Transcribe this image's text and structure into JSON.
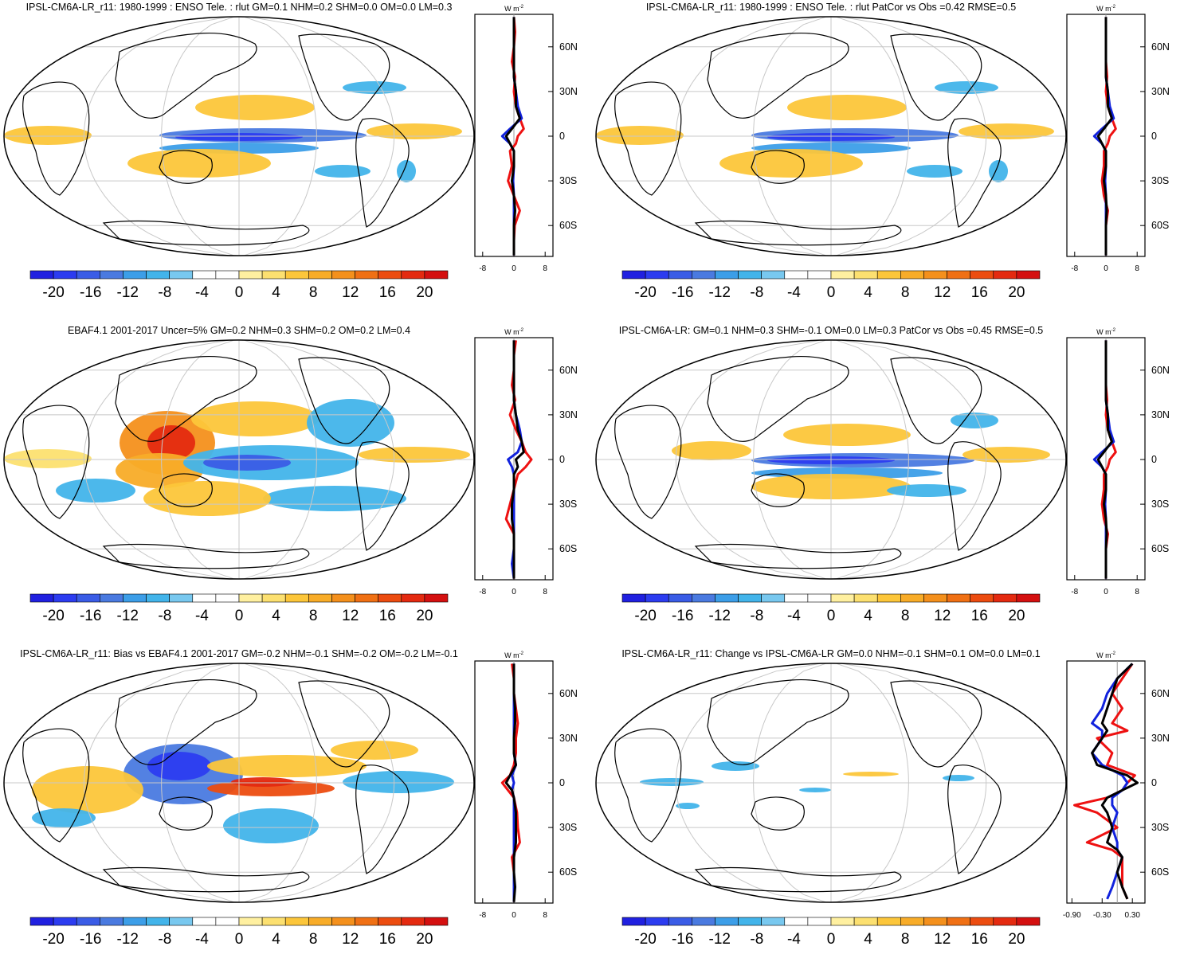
{
  "units": "W m",
  "units_exp": "-2",
  "lat_labels": [
    "60N",
    "30N",
    "0",
    "30S",
    "60S"
  ],
  "lat_values": [
    60,
    30,
    0,
    -30,
    -60
  ],
  "colorbar": {
    "labels": [
      "-20",
      "-16",
      "-12",
      "-8",
      "-4",
      "0",
      "4",
      "8",
      "12",
      "16",
      "20"
    ],
    "colors": [
      "#2020e0",
      "#2c3cf0",
      "#3a5ce6",
      "#4a7ae0",
      "#3c9ee8",
      "#42b4ea",
      "#78c8ef",
      "#ffffff",
      "#ffffff",
      "#fff0a0",
      "#fce070",
      "#fcc63a",
      "#f8ac28",
      "#f4901c",
      "#f07014",
      "#ec4c10",
      "#e42a10",
      "#d41010"
    ]
  },
  "panels": [
    {
      "id": "model-enso",
      "title": "IPSL-CM6A-LR_r11: 1980-1999 : ENSO Tele. : rlut GM=0.1 NHM=0.2 SHM=0.0 OM=0.0 LM=0.3",
      "xticks": [
        "-8",
        "0",
        "8"
      ],
      "xvals": [
        -8,
        0,
        8
      ],
      "xlim": [
        -10,
        10
      ],
      "profiles": {
        "lat": [
          80,
          70,
          60,
          50,
          40,
          30,
          20,
          12,
          5,
          0,
          -5,
          -10,
          -20,
          -30,
          -40,
          -50,
          -60,
          -70,
          -80
        ],
        "red": [
          0,
          0.3,
          0,
          -0.5,
          0.3,
          0,
          0.5,
          1.5,
          2.5,
          1,
          0.5,
          -1,
          -0.5,
          -1.5,
          0,
          1.5,
          0.2,
          0,
          0
        ],
        "blue": [
          0,
          0,
          0,
          0,
          0,
          0.5,
          1,
          2,
          -1,
          -3,
          -1,
          0,
          0,
          -0.2,
          0,
          0,
          0,
          0,
          0
        ],
        "black": [
          0,
          0,
          0,
          0,
          0,
          0.5,
          0.5,
          1.5,
          -0.5,
          -2,
          -1,
          0,
          0,
          -0.5,
          0,
          0.3,
          0,
          0,
          0
        ]
      }
    },
    {
      "id": "model-patcor",
      "title": "IPSL-CM6A-LR_r11: 1980-1999 : ENSO Tele. : rlut PatCor vs Obs =0.42 RMSE=0.5",
      "xticks": [
        "-8",
        "0",
        "8"
      ],
      "xvals": [
        -8,
        0,
        8
      ],
      "xlim": [
        -10,
        10
      ],
      "profiles": {
        "lat": [
          80,
          70,
          60,
          50,
          40,
          30,
          20,
          12,
          5,
          0,
          -5,
          -10,
          -20,
          -30,
          -40,
          -50,
          -60,
          -70,
          -80
        ],
        "red": [
          0,
          0,
          0,
          0,
          0.3,
          0,
          0.5,
          1.5,
          2.5,
          1,
          0.5,
          -0.5,
          -0.5,
          -1,
          -0.5,
          0.5,
          0,
          0,
          0
        ],
        "blue": [
          0,
          0,
          0,
          0,
          0,
          0.5,
          1,
          2,
          -1,
          -3,
          -1,
          0,
          0,
          -0.2,
          0,
          0,
          0,
          0,
          0
        ],
        "black": [
          0,
          0,
          0,
          0,
          0,
          0.5,
          0.5,
          1.5,
          -0.5,
          -2,
          -1,
          0,
          0,
          -0.5,
          0,
          0.2,
          0,
          0,
          0
        ]
      }
    },
    {
      "id": "obs-ebaf",
      "title": "EBAF4.1 2001-2017 Uncer=5% GM=0.2 NHM=0.3 SHM=0.2 OM=0.2 LM=0.4",
      "xticks": [
        "-8",
        "0",
        "8"
      ],
      "xvals": [
        -8,
        0,
        8
      ],
      "xlim": [
        -10,
        10
      ],
      "profiles": {
        "lat": [
          80,
          70,
          60,
          50,
          40,
          30,
          20,
          12,
          5,
          0,
          -5,
          -10,
          -20,
          -30,
          -40,
          -50,
          -60,
          -70,
          -80
        ],
        "red": [
          0.5,
          0,
          0,
          -0.5,
          0.3,
          -1,
          0.5,
          2,
          3,
          4.5,
          3,
          1,
          0,
          -1,
          -2,
          0,
          0,
          0,
          0
        ],
        "blue": [
          0,
          0,
          0,
          0,
          0,
          0.5,
          1.5,
          2,
          1,
          -1.5,
          -0.5,
          0,
          0,
          0,
          0,
          0,
          0,
          -0.5,
          0
        ],
        "black": [
          0,
          0,
          0,
          0,
          0,
          0.5,
          1,
          2,
          2.5,
          0.5,
          1,
          0,
          0,
          -0.5,
          -0.5,
          0,
          0,
          0,
          0
        ]
      }
    },
    {
      "id": "model-clim",
      "title": "IPSL-CM6A-LR: GM=0.1 NHM=0.3 SHM=-0.1 OM=0.0 LM=0.3 PatCor vs Obs =0.45 RMSE=0.5",
      "xticks": [
        "-8",
        "0",
        "8"
      ],
      "xvals": [
        -8,
        0,
        8
      ],
      "xlim": [
        -10,
        10
      ],
      "profiles": {
        "lat": [
          80,
          70,
          60,
          50,
          40,
          30,
          20,
          12,
          5,
          0,
          -5,
          -10,
          -20,
          -30,
          -40,
          -50,
          -60,
          -70,
          -80
        ],
        "red": [
          0,
          0,
          0,
          0,
          0.3,
          0,
          0.5,
          1.5,
          2.5,
          1,
          0.5,
          -0.5,
          -0.5,
          -1,
          -0.5,
          0.5,
          0,
          0,
          0
        ],
        "blue": [
          0,
          0,
          0,
          0,
          0,
          0.5,
          1,
          2,
          -1,
          -3,
          -1,
          0,
          0,
          -0.2,
          0,
          0,
          0,
          0,
          0
        ],
        "black": [
          0,
          0,
          0,
          0,
          0,
          0.5,
          0.5,
          1.5,
          -0.5,
          -2,
          -1,
          0,
          0,
          -0.5,
          0,
          0.2,
          0,
          0,
          0
        ]
      }
    },
    {
      "id": "bias",
      "title": "IPSL-CM6A-LR_r11: Bias vs EBAF4.1 2001-2017 GM=-0.2 NHM=-0.1 SHM=-0.2 OM=-0.2 LM=-0.1",
      "xticks": [
        "-8",
        "0",
        "8"
      ],
      "xvals": [
        -8,
        0,
        8
      ],
      "xlim": [
        -10,
        10
      ],
      "profiles": {
        "lat": [
          80,
          70,
          60,
          50,
          40,
          30,
          20,
          12,
          5,
          0,
          -5,
          -10,
          -20,
          -30,
          -40,
          -50,
          -60,
          -70,
          -80
        ],
        "red": [
          -0.5,
          0,
          0,
          0.5,
          1,
          0.5,
          0.5,
          0,
          -1,
          -3,
          -1.5,
          0,
          0.8,
          1,
          1.5,
          -0.5,
          0,
          0,
          0
        ],
        "blue": [
          0,
          0,
          0,
          0,
          0,
          0,
          0,
          0.5,
          -0.5,
          0,
          -0.5,
          0,
          0,
          0,
          0,
          0,
          0,
          0,
          0
        ],
        "black": [
          0,
          0,
          0,
          0.3,
          0.3,
          0,
          0,
          0.5,
          -1,
          -2,
          -0.5,
          0,
          0.5,
          0.5,
          0.5,
          0,
          0,
          0.3,
          0
        ]
      }
    },
    {
      "id": "change",
      "title": "IPSL-CM6A-LR_r11: Change vs IPSL-CM6A-LR GM=0.0 NHM=-0.1 SHM=0.1 OM=0.0 LM=0.1",
      "xticks": [
        "-0.90",
        "-0.30",
        "0.30"
      ],
      "xvals": [
        -0.9,
        -0.3,
        0.3
      ],
      "xlim": [
        -1.0,
        0.55
      ],
      "profiles": {
        "lat": [
          80,
          70,
          60,
          50,
          40,
          35,
          30,
          20,
          12,
          5,
          0,
          -5,
          -10,
          -15,
          -20,
          -30,
          -40,
          -45,
          -50,
          -60,
          -70,
          -78
        ],
        "red": [
          0.3,
          0.1,
          -0.1,
          0.1,
          -0.1,
          0.2,
          -0.4,
          -0.1,
          -0.2,
          0.35,
          0.2,
          0.1,
          -0.2,
          -0.85,
          -0.4,
          0.0,
          -0.6,
          -0.1,
          0.1,
          0.1,
          0.1,
          0.2
        ],
        "blue": [
          0.3,
          0.0,
          -0.2,
          -0.3,
          -0.5,
          -0.3,
          -0.3,
          -0.5,
          -0.3,
          0.1,
          0.2,
          0.1,
          -0.1,
          -0.1,
          0.0,
          -0.1,
          0.0,
          0.0,
          0.1,
          0.0,
          -0.1,
          -0.2
        ],
        "black": [
          0.3,
          0.0,
          -0.1,
          -0.2,
          -0.3,
          -0.2,
          -0.3,
          -0.5,
          -0.4,
          0.2,
          0.4,
          0.1,
          -0.2,
          -0.3,
          -0.2,
          -0.1,
          -0.2,
          0.0,
          0.1,
          0.0,
          0.1,
          0.2
        ]
      }
    }
  ]
}
